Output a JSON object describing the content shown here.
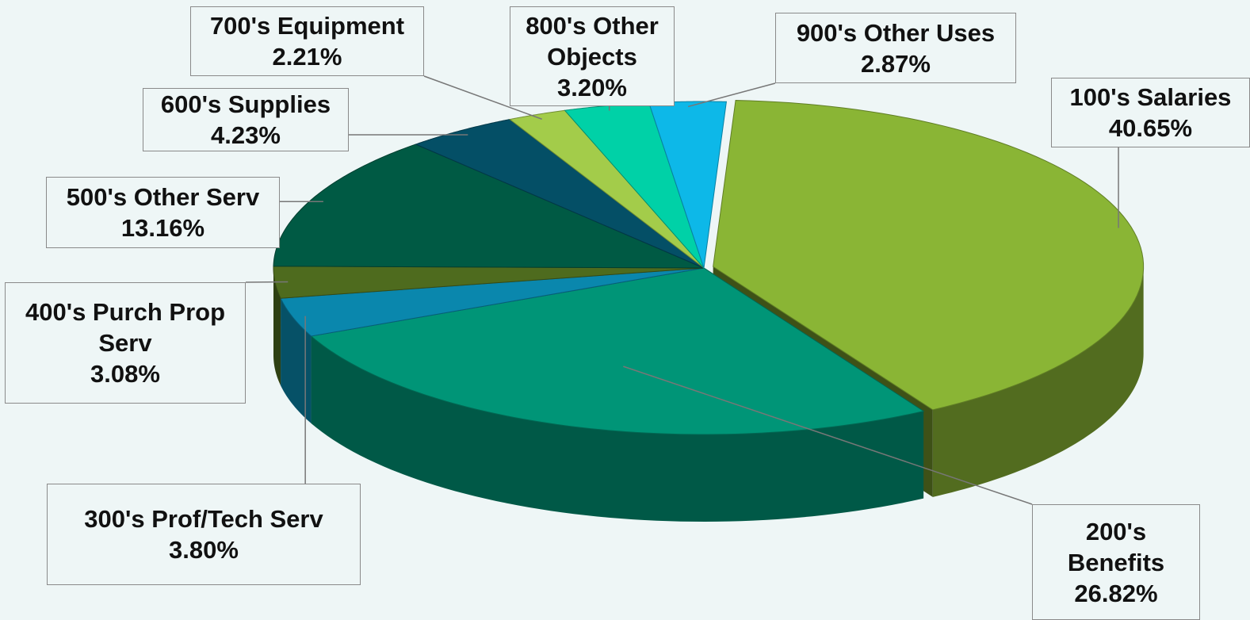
{
  "chart_data": {
    "type": "pie3d",
    "categories": [
      "100's Salaries",
      "200's Benefits",
      "300's Prof/Tech Serv",
      "400's Purch Prop Serv",
      "500's Other Serv",
      "600's Supplies",
      "700's Equipment",
      "800's Other Objects",
      "900's Other Uses"
    ],
    "values": [
      40.65,
      26.82,
      3.8,
      3.08,
      13.16,
      4.23,
      2.21,
      3.2,
      2.87
    ],
    "value_labels": [
      "40.65%",
      "26.82%",
      "3.80%",
      "3.08%",
      "13.16%",
      "4.23%",
      "2.21%",
      "3.20%",
      "2.87%"
    ],
    "colors": [
      "#8ab535",
      "#009577",
      "#0a87ad",
      "#4e6b1e",
      "#005a44",
      "#044f66",
      "#a3cc4a",
      "#00d1a7",
      "#0db8e8"
    ]
  }
}
